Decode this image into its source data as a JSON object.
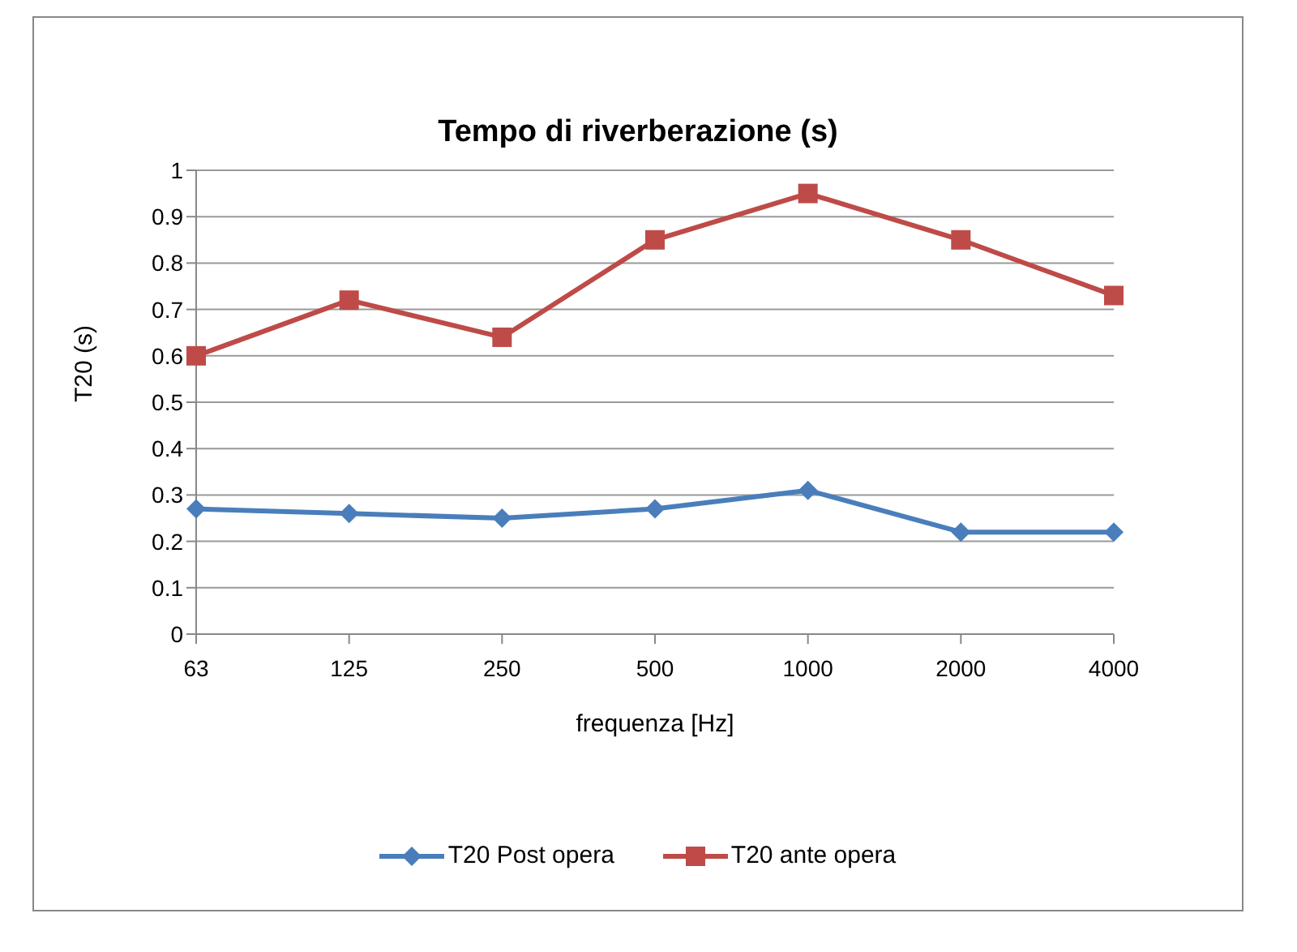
{
  "chart_data": {
    "type": "line",
    "title": "Tempo di riverberazione (s)",
    "xlabel": "frequenza [Hz]",
    "ylabel": "T20 (s)",
    "categories": [
      "63",
      "125",
      "250",
      "500",
      "1000",
      "2000",
      "4000"
    ],
    "series": [
      {
        "name": "T20 Post opera",
        "color": "#4a7ebb",
        "marker": "diamond",
        "values": [
          0.27,
          0.26,
          0.25,
          0.27,
          0.31,
          0.22,
          0.22
        ]
      },
      {
        "name": "T20 ante opera",
        "color": "#be4b48",
        "marker": "square",
        "values": [
          0.6,
          0.72,
          0.64,
          0.85,
          0.95,
          0.85,
          0.73
        ]
      }
    ],
    "ylim": [
      0,
      1
    ],
    "yticks": [
      0,
      0.1,
      0.2,
      0.3,
      0.4,
      0.5,
      0.6,
      0.7,
      0.8,
      0.9,
      1
    ],
    "grid": "y",
    "legend": "bottom",
    "line_style": "solid"
  }
}
